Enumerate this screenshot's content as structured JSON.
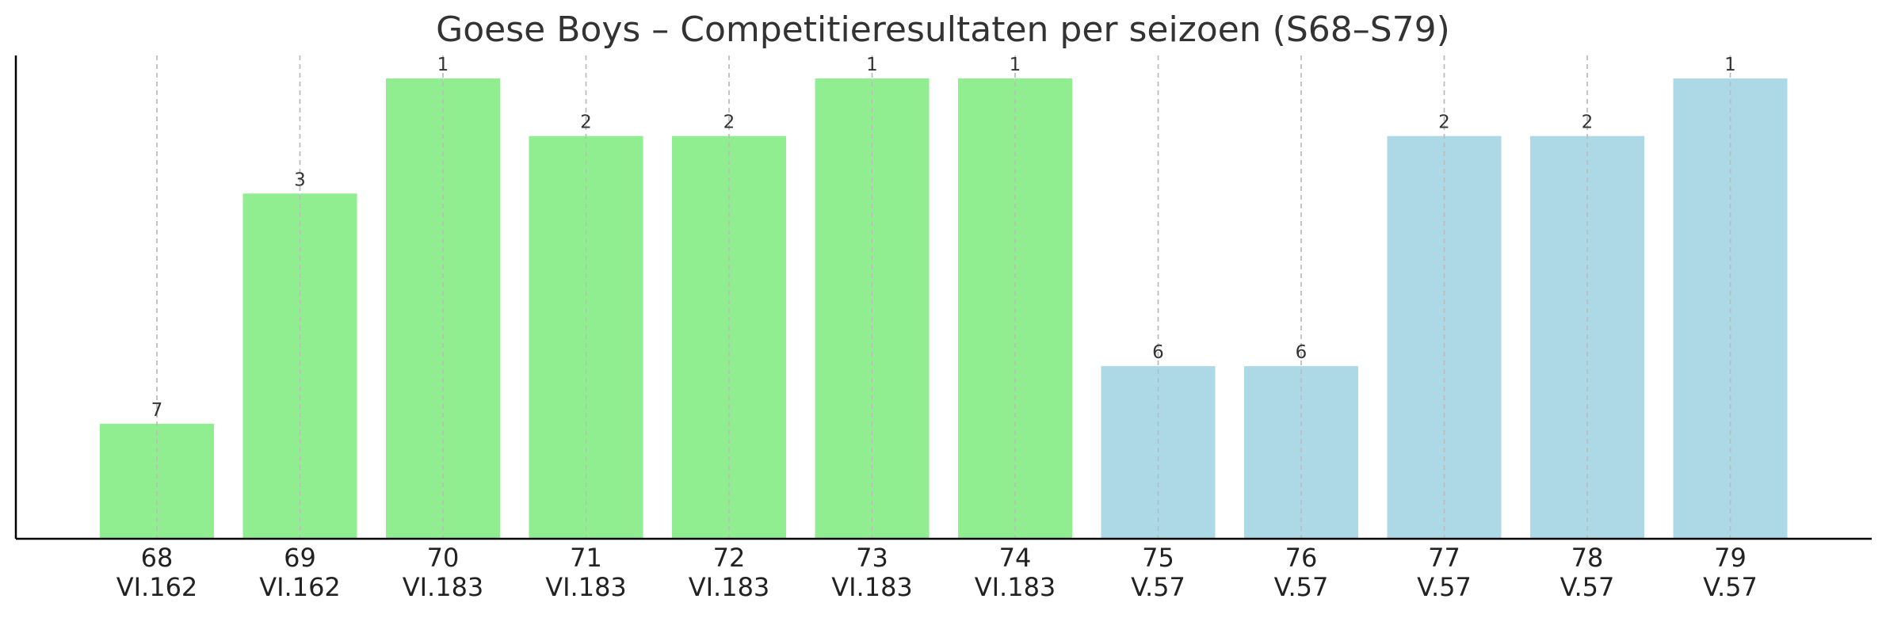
{
  "chart_data": {
    "type": "bar",
    "title": "Goese Boys – Competitieresultaten per seizoen (S68–S79)",
    "xlabel": "",
    "ylabel": "",
    "categories": [
      "68",
      "69",
      "70",
      "71",
      "72",
      "73",
      "74",
      "75",
      "76",
      "77",
      "78",
      "79"
    ],
    "divisions": [
      "VI.162",
      "VI.162",
      "VI.183",
      "VI.183",
      "VI.183",
      "VI.183",
      "VI.183",
      "V.57",
      "V.57",
      "V.57",
      "V.57",
      "V.57"
    ],
    "ranks": [
      7,
      3,
      1,
      2,
      2,
      1,
      1,
      6,
      6,
      2,
      2,
      1
    ],
    "bar_heights": [
      2,
      6,
      8,
      7,
      7,
      8,
      8,
      3,
      3,
      7,
      7,
      8
    ],
    "ylim": [
      0,
      8.4
    ],
    "bar_colors": [
      "#90ee90",
      "#90ee90",
      "#90ee90",
      "#90ee90",
      "#90ee90",
      "#90ee90",
      "#90ee90",
      "#add8e6",
      "#add8e6",
      "#add8e6",
      "#add8e6",
      "#add8e6"
    ],
    "grid": "vertical-dashed",
    "legend": "none"
  }
}
